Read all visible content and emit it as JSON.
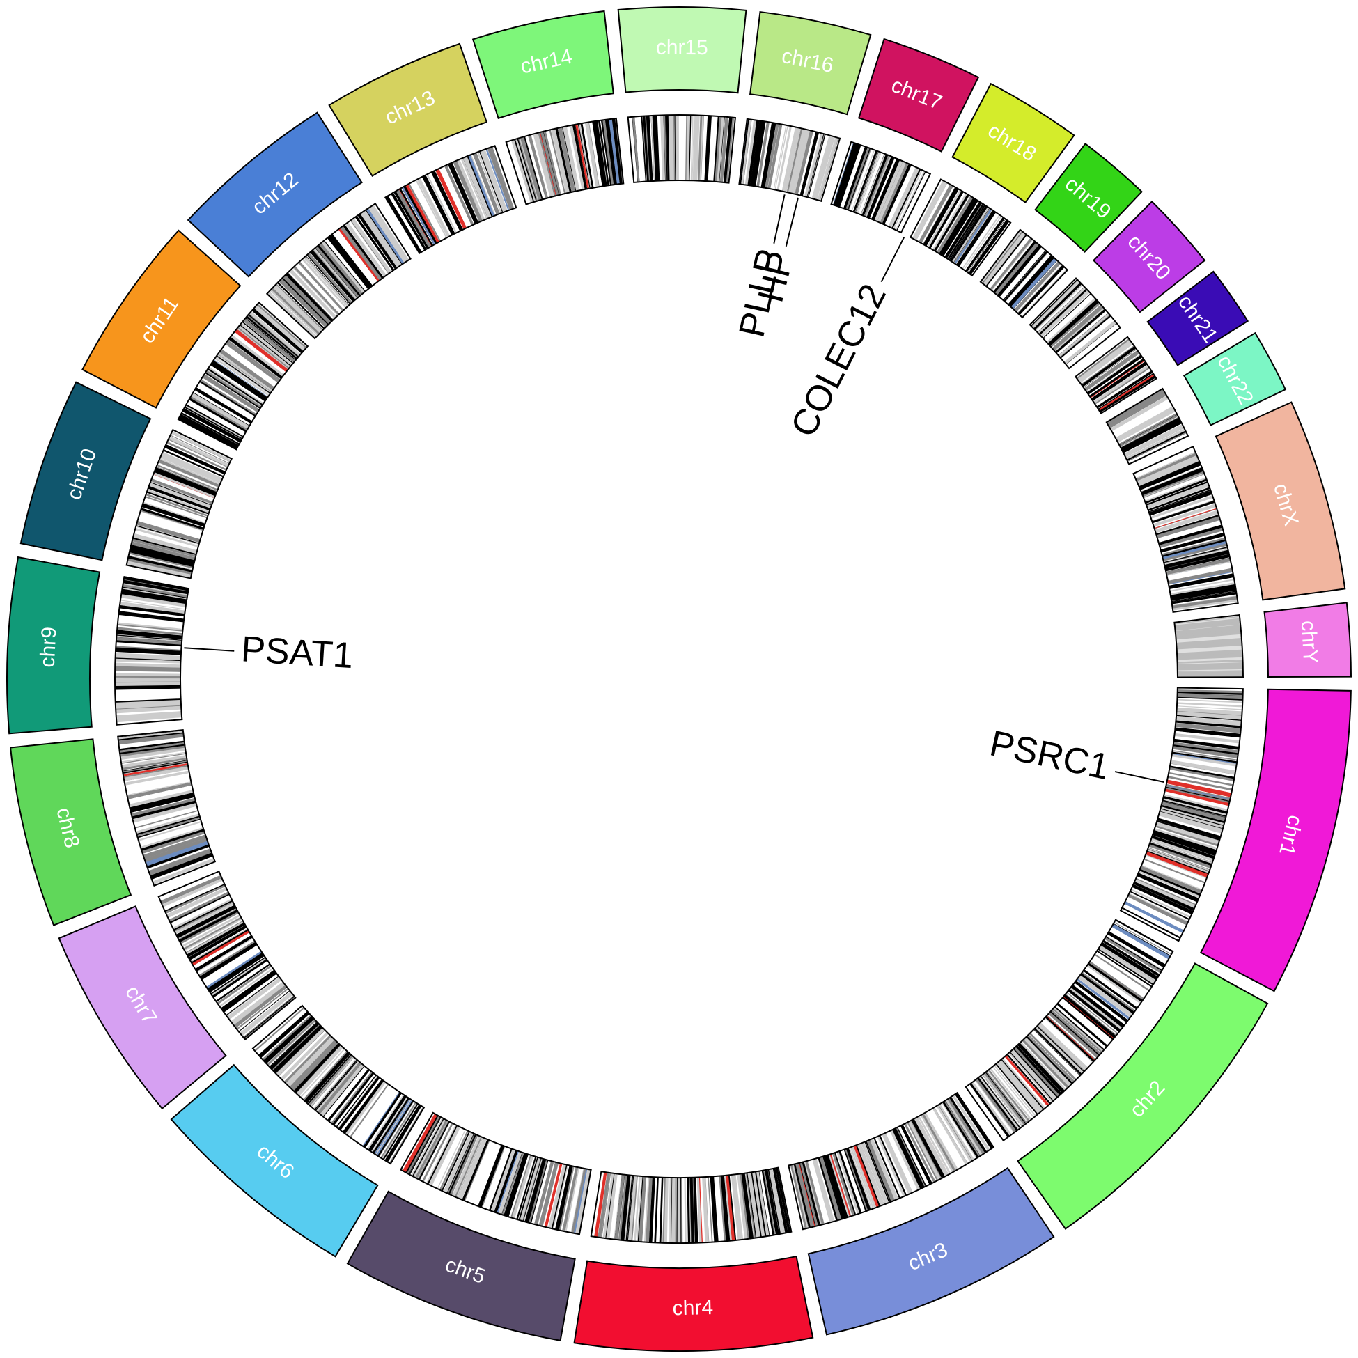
{
  "chromosomes": [
    {
      "label": "chr1",
      "color": "#f019d7"
    },
    {
      "label": "chr2",
      "color": "#7dfb6e"
    },
    {
      "label": "chr3",
      "color": "#788ed9"
    },
    {
      "label": "chr4",
      "color": "#f20e30"
    },
    {
      "label": "chr5",
      "color": "#574b6a"
    },
    {
      "label": "chr6",
      "color": "#57ccf0"
    },
    {
      "label": "chr7",
      "color": "#d6a0f2"
    },
    {
      "label": "chr8",
      "color": "#60d75a"
    },
    {
      "label": "chr9",
      "color": "#119a78"
    },
    {
      "label": "chr10",
      "color": "#10566d"
    },
    {
      "label": "chr11",
      "color": "#f7951c"
    },
    {
      "label": "chr12",
      "color": "#4a7fd6"
    },
    {
      "label": "chr13",
      "color": "#d5d25f"
    },
    {
      "label": "chr14",
      "color": "#7ef67a"
    },
    {
      "label": "chr15",
      "color": "#c0f9b3"
    },
    {
      "label": "chr16",
      "color": "#b9e887"
    },
    {
      "label": "chr17",
      "color": "#d01360"
    },
    {
      "label": "chr18",
      "color": "#d4ec2b"
    },
    {
      "label": "chr19",
      "color": "#33d417"
    },
    {
      "label": "chr20",
      "color": "#bc3de6"
    },
    {
      "label": "chr21",
      "color": "#3a0cb5"
    },
    {
      "label": "chr22",
      "color": "#7cf6c5"
    },
    {
      "label": "chrX",
      "color": "#f1b59f"
    },
    {
      "label": "chrY",
      "color": "#f17ce6"
    }
  ],
  "genes": [
    {
      "label": "PSRC1"
    },
    {
      "label": "PSAT1"
    },
    {
      "label": "PLLP"
    },
    {
      "label": "HP"
    },
    {
      "label": "COLEC12"
    }
  ]
}
